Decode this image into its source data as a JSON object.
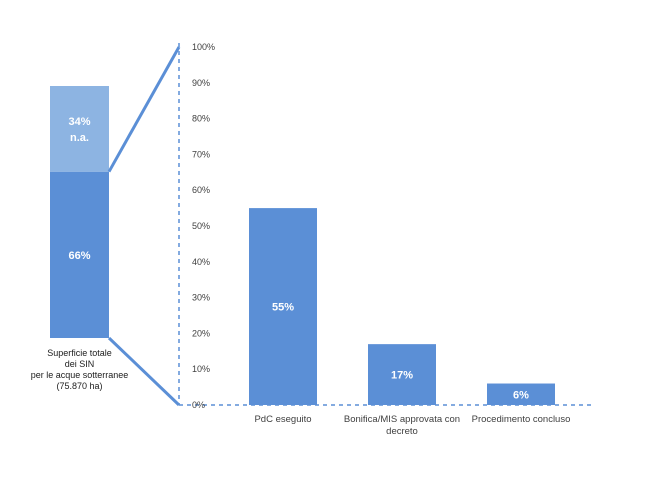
{
  "chart_data": [
    {
      "type": "bar",
      "stacked": true,
      "categories": [
        "Superficie totale dei SIN per le acque sotterranee (75.870 ha)"
      ],
      "category_label_lines": [
        "Superficie totale",
        "dei SIN",
        "per le acque sotterranee",
        "(75.870 ha)"
      ],
      "series": [
        {
          "values": [
            66
          ],
          "label": "66%",
          "color": "#5B8FD6"
        },
        {
          "values": [
            34
          ],
          "label": "34%",
          "sublabel": "n.a.",
          "color": "#8DB4E2"
        }
      ],
      "ylim": [
        0,
        100
      ]
    },
    {
      "type": "bar",
      "categories": [
        "PdC eseguito",
        "Bonifica/MIS approvata con decreto",
        "Procedimento concluso"
      ],
      "category_label_lines": [
        [
          "PdC eseguito"
        ],
        [
          "Bonifica/MIS approvata con",
          "decreto"
        ],
        [
          "Procedimento concluso"
        ]
      ],
      "values": [
        55,
        17,
        6
      ],
      "value_labels": [
        "55%",
        "17%",
        "6%"
      ],
      "bar_color": "#5B8FD6",
      "ylim": [
        0,
        100
      ],
      "yticks": [
        0,
        10,
        20,
        30,
        40,
        50,
        60,
        70,
        80,
        90,
        100
      ],
      "ytick_labels": [
        "0%",
        "10%",
        "20%",
        "30%",
        "40%",
        "50%",
        "60%",
        "70%",
        "80%",
        "90%",
        "100%"
      ],
      "axis_color": "#5B8FD6",
      "grid": false
    }
  ]
}
